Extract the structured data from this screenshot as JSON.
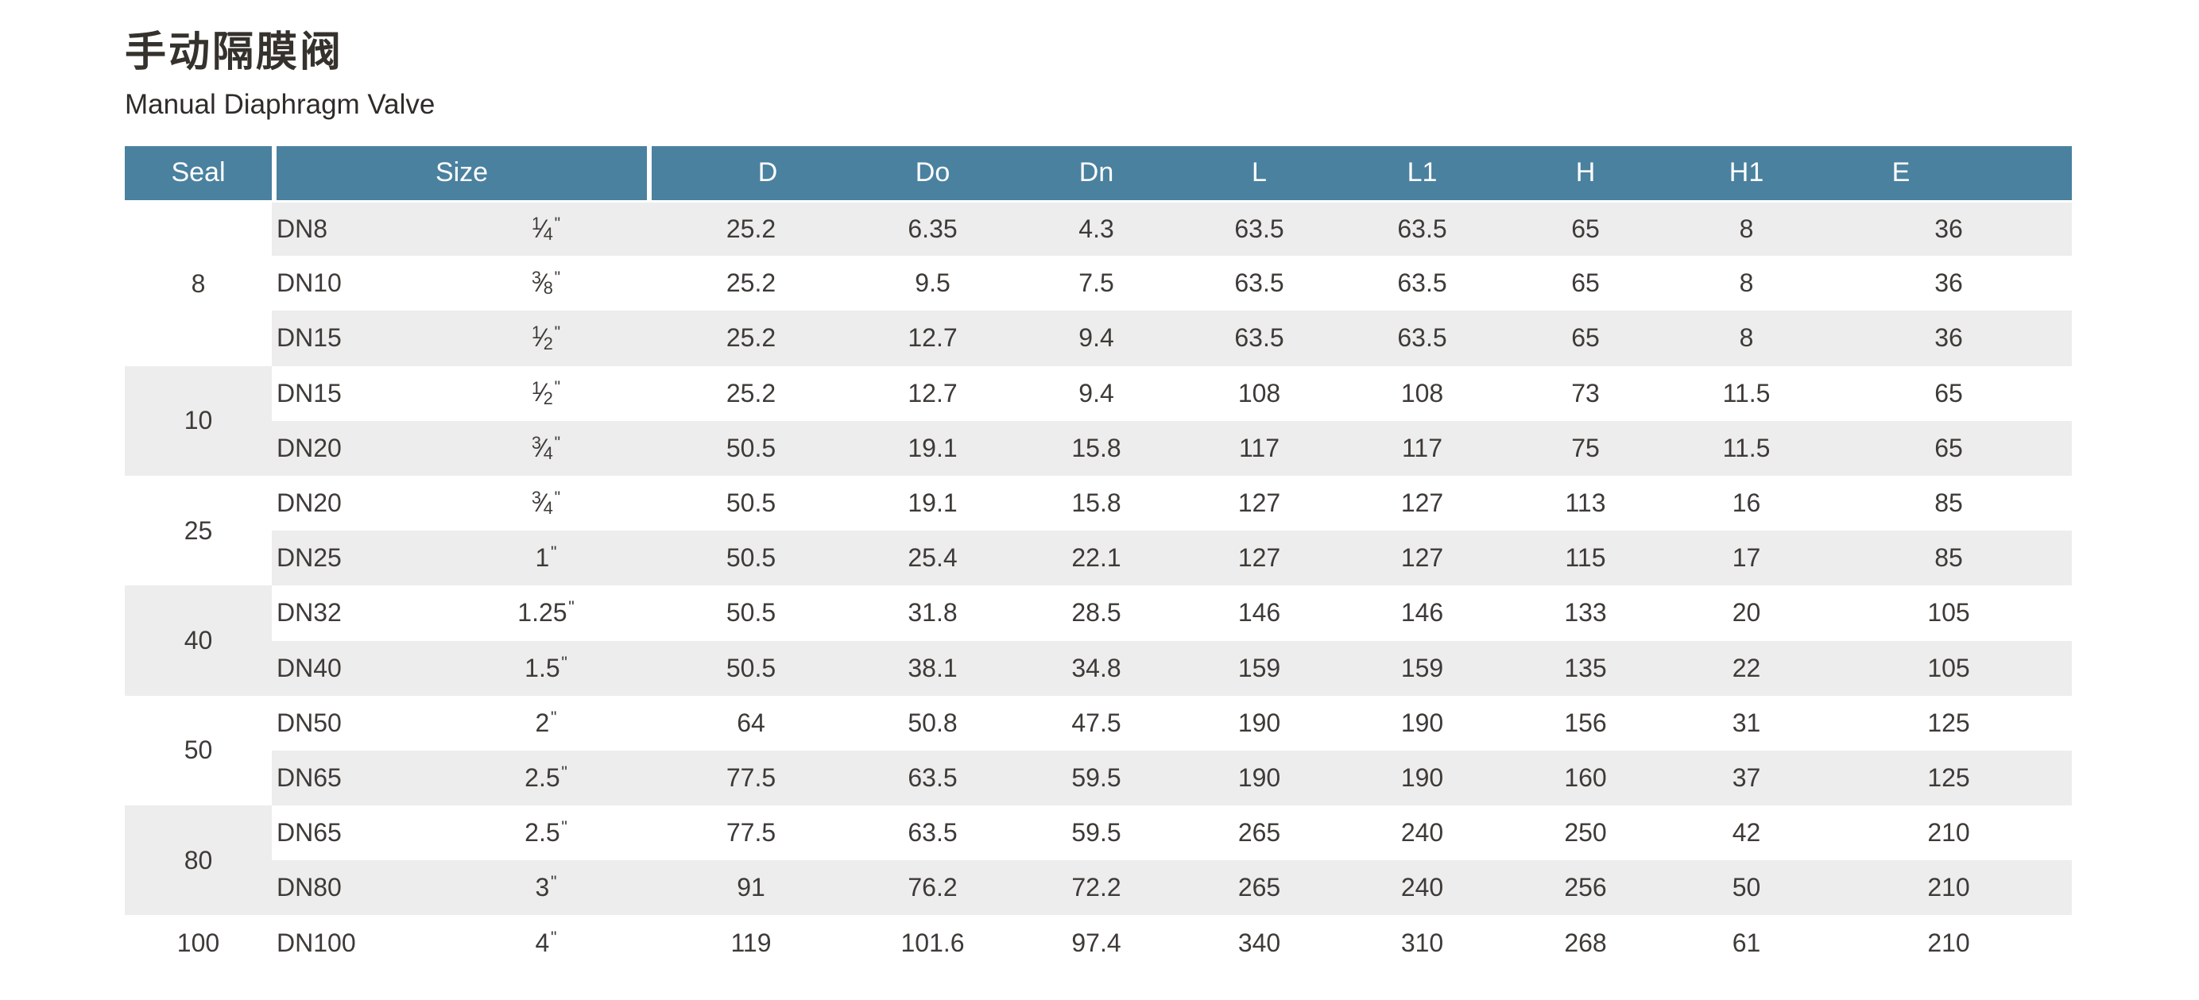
{
  "page": {
    "title_zh": "手动隔膜阀",
    "title_en": "Manual Diaphragm Valve"
  },
  "colors": {
    "header_bg": "#4a819f",
    "stripe_bg": "#ededed",
    "header_text": "#ffffff",
    "body_text": "#3e3a37"
  },
  "table": {
    "header": {
      "seal": "Seal",
      "size": "Size",
      "dims": [
        "D",
        "Do",
        "Dn",
        "L",
        "L1",
        "H",
        "H1",
        "E"
      ]
    },
    "groups": [
      {
        "seal": "8",
        "rows": [
          {
            "size_dn": "DN8",
            "size_in": "1/4\"",
            "values": [
              "25.2",
              "6.35",
              "4.3",
              "63.5",
              "63.5",
              "65",
              "8",
              "36"
            ]
          },
          {
            "size_dn": "DN10",
            "size_in": "3/8\"",
            "values": [
              "25.2",
              "9.5",
              "7.5",
              "63.5",
              "63.5",
              "65",
              "8",
              "36"
            ]
          },
          {
            "size_dn": "DN15",
            "size_in": "1/2\"",
            "values": [
              "25.2",
              "12.7",
              "9.4",
              "63.5",
              "63.5",
              "65",
              "8",
              "36"
            ]
          }
        ]
      },
      {
        "seal": "10",
        "rows": [
          {
            "size_dn": "DN15",
            "size_in": "1/2\"",
            "values": [
              "25.2",
              "12.7",
              "9.4",
              "108",
              "108",
              "73",
              "11.5",
              "65"
            ]
          },
          {
            "size_dn": "DN20",
            "size_in": "3/4\"",
            "values": [
              "50.5",
              "19.1",
              "15.8",
              "117",
              "117",
              "75",
              "11.5",
              "65"
            ]
          }
        ]
      },
      {
        "seal": "25",
        "rows": [
          {
            "size_dn": "DN20",
            "size_in": "3/4\"",
            "values": [
              "50.5",
              "19.1",
              "15.8",
              "127",
              "127",
              "113",
              "16",
              "85"
            ]
          },
          {
            "size_dn": "DN25",
            "size_in": "1\"",
            "values": [
              "50.5",
              "25.4",
              "22.1",
              "127",
              "127",
              "115",
              "17",
              "85"
            ]
          }
        ]
      },
      {
        "seal": "40",
        "rows": [
          {
            "size_dn": "DN32",
            "size_in": "1.25\"",
            "values": [
              "50.5",
              "31.8",
              "28.5",
              "146",
              "146",
              "133",
              "20",
              "105"
            ]
          },
          {
            "size_dn": "DN40",
            "size_in": "1.5\"",
            "values": [
              "50.5",
              "38.1",
              "34.8",
              "159",
              "159",
              "135",
              "22",
              "105"
            ]
          }
        ]
      },
      {
        "seal": "50",
        "rows": [
          {
            "size_dn": "DN50",
            "size_in": "2\"",
            "values": [
              "64",
              "50.8",
              "47.5",
              "190",
              "190",
              "156",
              "31",
              "125"
            ]
          },
          {
            "size_dn": "DN65",
            "size_in": "2.5\"",
            "values": [
              "77.5",
              "63.5",
              "59.5",
              "190",
              "190",
              "160",
              "37",
              "125"
            ]
          }
        ]
      },
      {
        "seal": "80",
        "rows": [
          {
            "size_dn": "DN65",
            "size_in": "2.5\"",
            "values": [
              "77.5",
              "63.5",
              "59.5",
              "265",
              "240",
              "250",
              "42",
              "210"
            ]
          },
          {
            "size_dn": "DN80",
            "size_in": "3\"",
            "values": [
              "91",
              "76.2",
              "72.2",
              "265",
              "240",
              "256",
              "50",
              "210"
            ]
          }
        ]
      },
      {
        "seal": "100",
        "rows": [
          {
            "size_dn": "DN100",
            "size_in": "4\"",
            "values": [
              "119",
              "101.6",
              "97.4",
              "340",
              "310",
              "268",
              "61",
              "210"
            ]
          }
        ]
      }
    ]
  }
}
